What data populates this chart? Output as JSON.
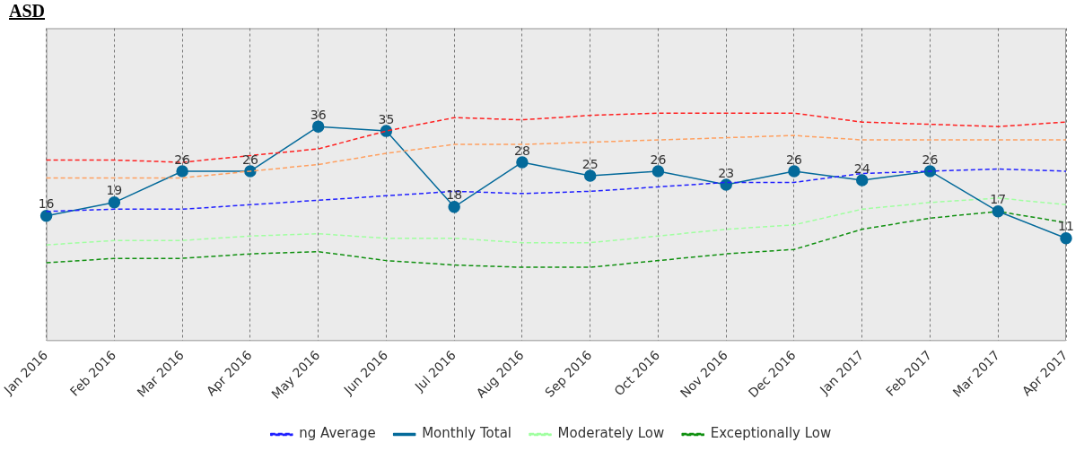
{
  "chart_data": {
    "type": "line",
    "title": "ASD",
    "categories": [
      "Jan 2016",
      "Feb 2016",
      "Mar 2016",
      "Apr 2016",
      "May 2016",
      "Jun 2016",
      "Jul 2016",
      "Aug 2016",
      "Sep 2016",
      "Oct 2016",
      "Nov 2016",
      "Dec 2016",
      "Jan 2017",
      "Feb 2017",
      "Mar 2017",
      "Apr 2017"
    ],
    "ylim": [
      -12,
      58
    ],
    "tick_labels": "x",
    "grid": "x",
    "legend": "bottom",
    "series": [
      {
        "color": "#ff2020",
        "line_style": "dashed",
        "marker": "none",
        "values": [
          28.5,
          28.5,
          28,
          29.5,
          31,
          35,
          38,
          37.5,
          38.5,
          39,
          39,
          39,
          37,
          36.5,
          36,
          37
        ]
      },
      {
        "color": "#ffa060",
        "line_style": "dashed",
        "marker": "none",
        "values": [
          24.5,
          24.5,
          24.5,
          26,
          27.5,
          30,
          32,
          32,
          32.5,
          33,
          33.5,
          34,
          33,
          33,
          33,
          33
        ]
      },
      {
        "name": "ng Average",
        "color": "#2020ff",
        "line_style": "dashed",
        "marker": "none",
        "values": [
          17,
          17.5,
          17.5,
          18.5,
          19.5,
          20.5,
          21.5,
          21,
          21.5,
          22.5,
          23.5,
          23.5,
          25.5,
          26,
          26.5,
          26
        ]
      },
      {
        "name": "Monthly Total",
        "color": "#046a9a",
        "line_style": "solid",
        "marker": "circle",
        "values": [
          16,
          19,
          26,
          26,
          36,
          35,
          18,
          28,
          25,
          26,
          23,
          26,
          24,
          26,
          17,
          11
        ],
        "value_labels": [
          "16",
          "19",
          "26",
          "26",
          "36",
          "35",
          "18",
          "28",
          "25",
          "26",
          "23",
          "26",
          "24",
          "26",
          "17",
          "11"
        ]
      },
      {
        "name": "Moderately Low",
        "color": "#a0ffa0",
        "line_style": "dashed",
        "marker": "none",
        "values": [
          9.5,
          10.5,
          10.5,
          11.5,
          12,
          11,
          11,
          10,
          10,
          11.5,
          13,
          14,
          17.5,
          19,
          20,
          18.5
        ]
      },
      {
        "name": "Exceptionally Low",
        "color": "#109010",
        "line_style": "dashed",
        "marker": "none",
        "values": [
          5.5,
          6.5,
          6.5,
          7.5,
          8,
          6,
          5,
          4.5,
          4.5,
          6,
          7.5,
          8.5,
          13,
          15.5,
          17,
          14.5
        ]
      }
    ]
  }
}
